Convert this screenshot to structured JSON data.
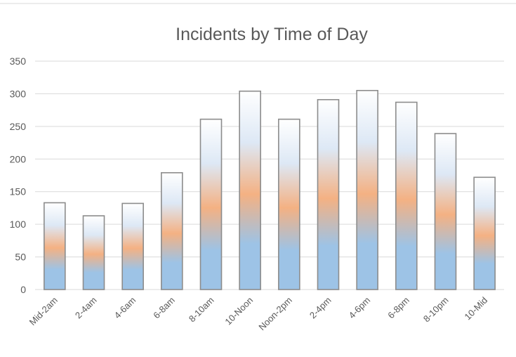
{
  "chart_data": {
    "type": "bar",
    "title": "Incidents by Time of Day",
    "xlabel": "",
    "ylabel": "",
    "categories": [
      "Mid-2am",
      "2-4am",
      "4-6am",
      "6-8am",
      "8-10am",
      "10-Noon",
      "Noon-2pm",
      "2-4pm",
      "4-6pm",
      "6-8pm",
      "8-10pm",
      "10-Mid"
    ],
    "series": [
      {
        "values": [
          133,
          113,
          132,
          179,
          261,
          304,
          261,
          291,
          305,
          287,
          239,
          172
        ]
      }
    ],
    "ylim": [
      0,
      350
    ],
    "yticks": [
      0,
      50,
      100,
      150,
      200,
      250,
      300,
      350
    ],
    "grid": true,
    "legend": "none",
    "colors": {
      "bar_bottom": "#9dc3e6",
      "bar_middle": "#f4b183",
      "bar_top": "#ffffff",
      "bar_outline": "#8c8c8c",
      "grid": "#d9d9d9",
      "text": "#595959"
    }
  }
}
